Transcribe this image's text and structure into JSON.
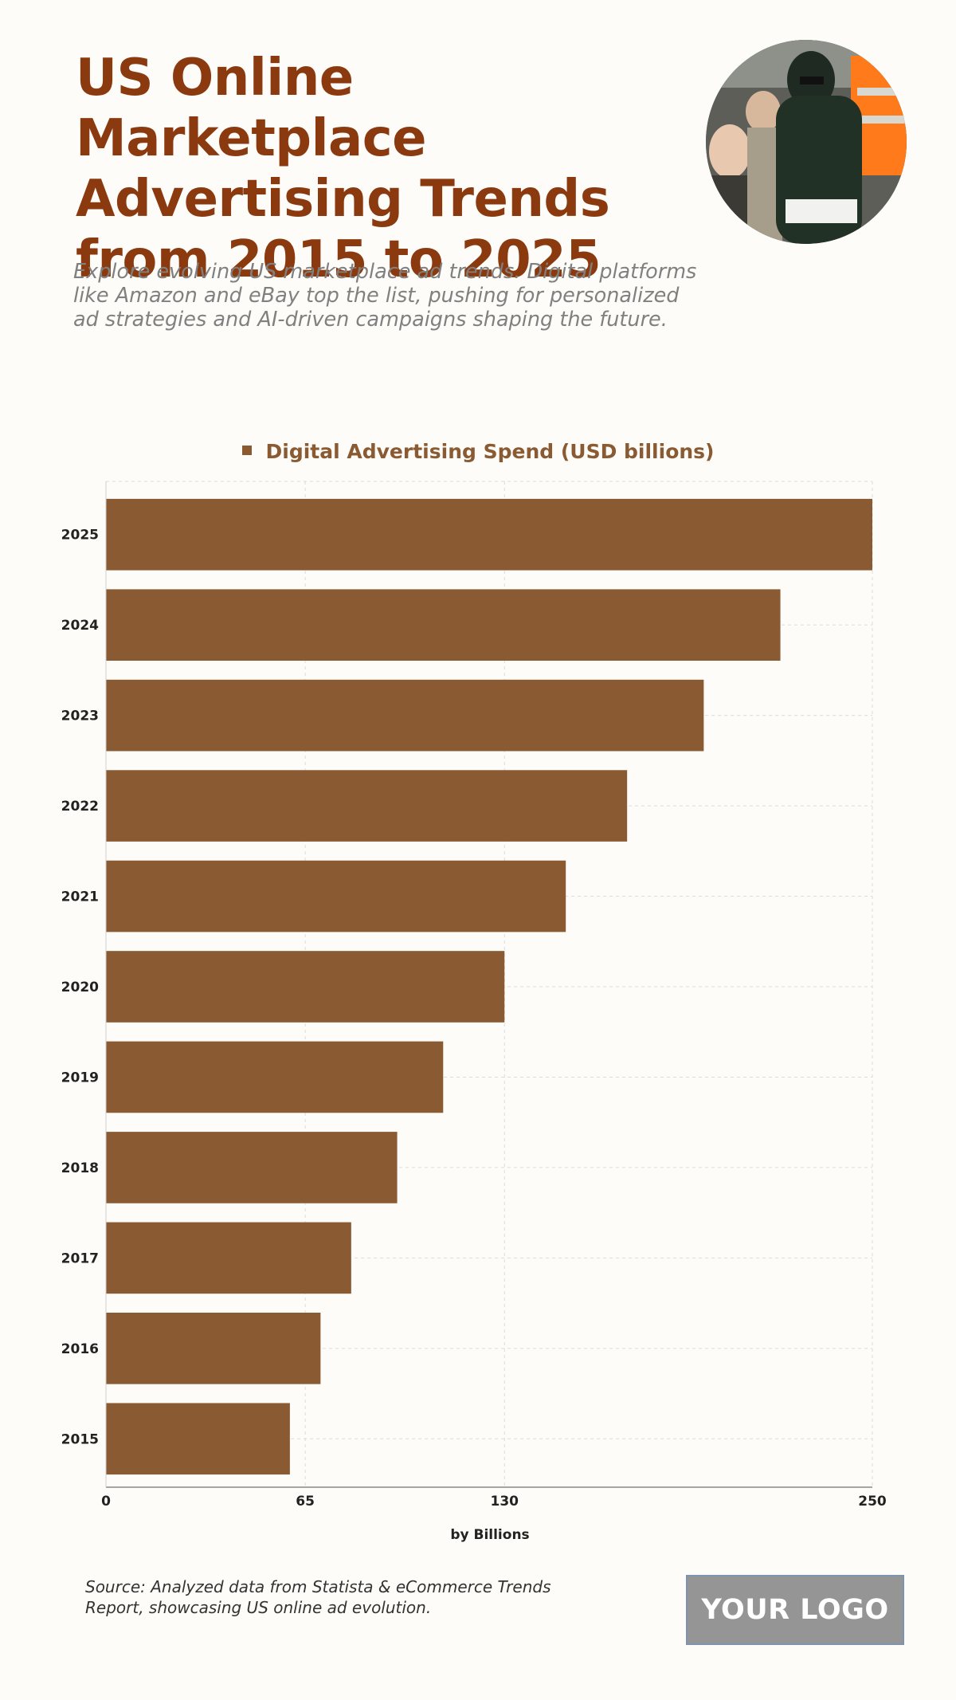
{
  "header": {
    "title": "US Online Marketplace Advertising Trends from 2015 to 2025",
    "subtitle": "Explore evolving US marketplace ad trends. Digital platforms like Amazon and eBay top the list, pushing for personalized ad strategies and AI-driven campaigns shaping the future."
  },
  "footer": {
    "source": "Source: Analyzed data from Statista & eCommerce Trends Report, showcasing US online ad evolution.",
    "logo": "YOUR LOGO"
  },
  "colors": {
    "bar": "#8a5a32",
    "title": "#8b3a0f"
  },
  "chart_data": {
    "type": "bar",
    "orientation": "horizontal",
    "categories": [
      "2025",
      "2024",
      "2023",
      "2022",
      "2021",
      "2020",
      "2019",
      "2018",
      "2017",
      "2016",
      "2015"
    ],
    "series": [
      {
        "name": "Digital Advertising Spend (USD billions)",
        "values": [
          250,
          220,
          195,
          170,
          150,
          130,
          110,
          95,
          80,
          70,
          60
        ]
      }
    ],
    "xlabel": "by Billions",
    "xlim": [
      0,
      250
    ],
    "xticks": [
      0,
      65,
      130,
      250
    ],
    "grid": true,
    "legend": "top-center"
  }
}
